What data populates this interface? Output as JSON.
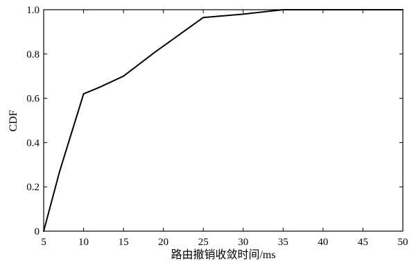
{
  "chart_data": {
    "type": "line",
    "xlabel": "路由撤销收敛时间/ms",
    "ylabel": "CDF",
    "xlim": [
      5,
      50
    ],
    "ylim": [
      0,
      1
    ],
    "xticks": [
      "5",
      "10",
      "15",
      "20",
      "25",
      "30",
      "35",
      "40",
      "45",
      "50"
    ],
    "yticks": [
      "0",
      "0.2",
      "0.4",
      "0.6",
      "0.8",
      "1.0"
    ],
    "grid": false,
    "legend": "none",
    "series": [
      {
        "x": [
          5,
          7,
          10,
          12,
          15,
          19,
          25,
          30,
          35,
          50
        ],
        "y": [
          0,
          0.27,
          0.62,
          0.65,
          0.7,
          0.81,
          0.965,
          0.98,
          1.0,
          1.0
        ],
        "color": "#000000"
      }
    ]
  }
}
